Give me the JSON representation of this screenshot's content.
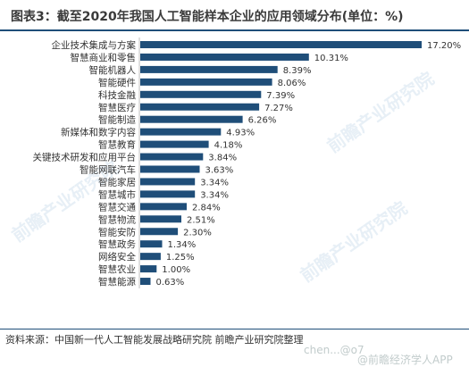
{
  "title": "图表3：截至2020年我国人工智能样本企业的应用领域分布(单位：%)",
  "source": "资料来源：中国新一代人工智能发展战略研究院 前瞻产业研究院整理",
  "watermarks": {
    "left": "前瞻产业研究院",
    "right_upper": "前瞻产业研究院",
    "right_lower": "前瞻产业研究院",
    "footer_handle": "@前瞻经济学人APP",
    "footer_url": "chen...@o7"
  },
  "colors": {
    "bar": "#1f4e79",
    "title": "#3a3a3a",
    "rule": "#1f4e79"
  },
  "chart_data": {
    "type": "bar",
    "orientation": "horizontal",
    "categories": [
      "企业技术集成与方案",
      "智慧商业和零售",
      "智能机器人",
      "智能硬件",
      "科技金融",
      "智慧医疗",
      "智能制造",
      "新媒体和数字内容",
      "智慧教育",
      "关键技术研发和应用平台",
      "智能网联汽车",
      "智能家居",
      "智慧城市",
      "智慧交通",
      "智慧物流",
      "智能安防",
      "智慧政务",
      "网络安全",
      "智慧农业",
      "智慧能源"
    ],
    "values": [
      17.2,
      10.31,
      8.39,
      8.06,
      7.39,
      7.27,
      6.26,
      4.93,
      4.18,
      3.84,
      3.63,
      3.34,
      3.34,
      2.84,
      2.51,
      2.3,
      1.34,
      1.25,
      1.0,
      0.63
    ],
    "value_labels": [
      "17.20%",
      "10.31%",
      "8.39%",
      "8.06%",
      "7.39%",
      "7.27%",
      "6.26%",
      "4.93%",
      "4.18%",
      "3.84%",
      "3.63%",
      "3.34%",
      "3.34%",
      "2.84%",
      "2.51%",
      "2.30%",
      "1.34%",
      "1.25%",
      "1.00%",
      "0.63%"
    ],
    "xlim": [
      0,
      17.2
    ],
    "grid": false,
    "legend": "none"
  }
}
